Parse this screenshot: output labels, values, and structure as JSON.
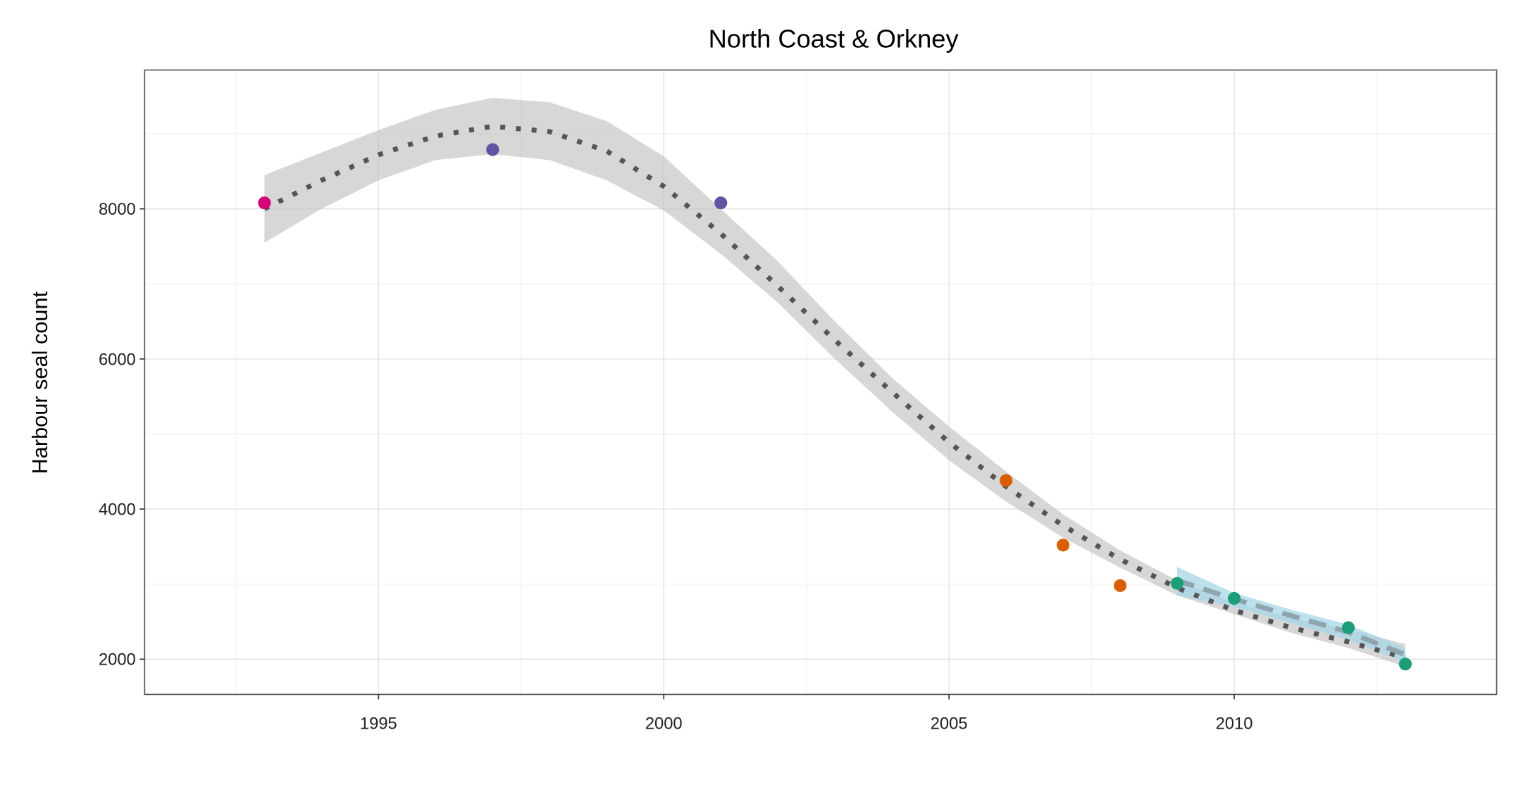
{
  "chart_data": {
    "type": "scatter",
    "title": "North Coast & Orkney",
    "xlabel": "",
    "ylabel": "Harbour seal count",
    "xlim": [
      1990.9,
      2014.6
    ],
    "ylim": [
      1530,
      9850
    ],
    "grid": true,
    "x_ticks": [
      1995,
      2000,
      2005,
      2010
    ],
    "y_ticks": [
      2000,
      4000,
      6000,
      8000
    ],
    "points": [
      {
        "x": 1993,
        "y": 8080,
        "color": "#d6007a"
      },
      {
        "x": 1997,
        "y": 8790,
        "color": "#5e55a3"
      },
      {
        "x": 2001,
        "y": 8080,
        "color": "#5e55a3"
      },
      {
        "x": 2006,
        "y": 4380,
        "color": "#d95f02"
      },
      {
        "x": 2007,
        "y": 3520,
        "color": "#d95f02"
      },
      {
        "x": 2008,
        "y": 2980,
        "color": "#d95f02"
      },
      {
        "x": 2009,
        "y": 3010,
        "color": "#1b9e77"
      },
      {
        "x": 2010,
        "y": 2810,
        "color": "#1b9e77"
      },
      {
        "x": 2012,
        "y": 2420,
        "color": "#1b9e77"
      },
      {
        "x": 2013,
        "y": 1935,
        "color": "#1b9e77"
      }
    ],
    "fits": [
      {
        "name": "full-trend",
        "line_style": "dotted",
        "line_color": "#555555",
        "ribbon_color": "#bdbdbd",
        "x": [
          1993,
          1994,
          1995,
          1996,
          1997,
          1998,
          1999,
          2000,
          2001,
          2002,
          2003,
          2004,
          2005,
          2006,
          2007,
          2008,
          2009,
          2010,
          2011,
          2012,
          2013
        ],
        "y": [
          8000,
          8380,
          8720,
          8970,
          9100,
          9030,
          8770,
          8300,
          7670,
          6970,
          6250,
          5560,
          4890,
          4300,
          3780,
          3330,
          2950,
          2650,
          2420,
          2230,
          2020
        ],
        "lower": [
          7550,
          8000,
          8380,
          8650,
          8730,
          8650,
          8380,
          7980,
          7400,
          6750,
          6000,
          5300,
          4650,
          4100,
          3620,
          3220,
          2850,
          2600,
          2350,
          2150,
          1900
        ],
        "upper": [
          8450,
          8750,
          9050,
          9320,
          9480,
          9420,
          9170,
          8700,
          8000,
          7300,
          6500,
          5750,
          5100,
          4500,
          3930,
          3450,
          3050,
          2750,
          2550,
          2400,
          2200
        ]
      },
      {
        "name": "recent-trend",
        "line_style": "dashed",
        "line_color": "#8fa5ad",
        "ribbon_color": "#a6d5e6",
        "x": [
          2009,
          2010,
          2011,
          2012,
          2013
        ],
        "y": [
          3050,
          2800,
          2580,
          2360,
          2060
        ],
        "lower": [
          2850,
          2700,
          2480,
          2260,
          1960
        ],
        "upper": [
          3230,
          2880,
          2660,
          2460,
          2150
        ]
      }
    ]
  }
}
